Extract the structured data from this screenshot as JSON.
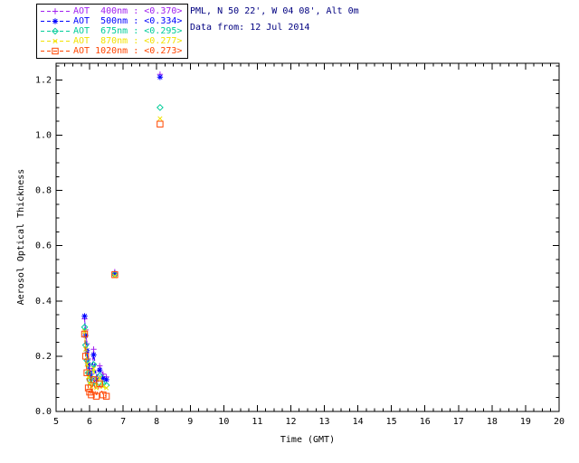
{
  "header": {
    "station_line": "PML, N 50 22', W 04 08', Alt 0m",
    "date_line": "Data from: 12 Jul 2014",
    "text_color": "#000080"
  },
  "legend": {
    "entries": [
      {
        "label": "AOT  400nm : <0.370>",
        "color": "#a020f0",
        "marker": "plus"
      },
      {
        "label": "AOT  500nm : <0.334>",
        "color": "#0000ff",
        "marker": "asterisk"
      },
      {
        "label": "AOT  675nm : <0.295>",
        "color": "#00cc99",
        "marker": "diamond"
      },
      {
        "label": "AOT  870nm : <0.277>",
        "color": "#f2e200",
        "marker": "cross"
      },
      {
        "label": "AOT 1020nm : <0.273>",
        "color": "#ff4500",
        "marker": "square"
      }
    ]
  },
  "chart_data": {
    "type": "scatter",
    "title": "",
    "xlabel": "Time (GMT)",
    "ylabel": "Aerosol Optical Thickness",
    "xlim": [
      5,
      20
    ],
    "ylim": [
      0,
      1.26
    ],
    "xticks": [
      5,
      6,
      7,
      8,
      9,
      10,
      11,
      12,
      13,
      14,
      15,
      16,
      17,
      18,
      19,
      20
    ],
    "yticks": [
      0.0,
      0.2,
      0.4,
      0.6,
      0.8,
      1.0,
      1.2
    ],
    "x_minor_step": 0.25,
    "y_minor_step": 0.05,
    "grid": false,
    "legend_position": "top-left-outside",
    "axis_color": "#000000",
    "line_style": "dashed",
    "x": [
      5.85,
      5.88,
      5.92,
      5.96,
      6.0,
      6.05,
      6.12,
      6.2,
      6.3,
      6.4,
      6.5,
      6.75,
      8.1
    ],
    "connected_point_range": [
      0,
      10
    ],
    "series": [
      {
        "name": "AOT 400nm",
        "mean_label": "<0.370>",
        "color": "#a020f0",
        "marker": "plus",
        "y": [
          0.335,
          0.295,
          0.245,
          0.19,
          0.155,
          0.135,
          0.225,
          0.125,
          0.165,
          0.135,
          0.125,
          0.505,
          1.22
        ]
      },
      {
        "name": "AOT 500nm",
        "mean_label": "<0.334>",
        "color": "#0000ff",
        "marker": "asterisk",
        "y": [
          0.345,
          0.275,
          0.22,
          0.17,
          0.14,
          0.12,
          0.205,
          0.115,
          0.15,
          0.12,
          0.115,
          0.5,
          1.21
        ]
      },
      {
        "name": "AOT 675nm",
        "mean_label": "<0.295>",
        "color": "#00cc99",
        "marker": "diamond",
        "y": [
          0.305,
          0.24,
          0.185,
          0.14,
          0.115,
          0.1,
          0.17,
          0.095,
          0.13,
          0.1,
          0.095,
          0.495,
          1.1
        ]
      },
      {
        "name": "AOT 870nm",
        "mean_label": "<0.277>",
        "color": "#f2e200",
        "marker": "cross",
        "y": [
          0.29,
          0.225,
          0.17,
          0.125,
          0.1,
          0.09,
          0.155,
          0.085,
          0.12,
          0.09,
          0.085,
          0.49,
          1.06
        ]
      },
      {
        "name": "AOT 1020nm",
        "mean_label": "<0.273>",
        "color": "#ff4500",
        "marker": "square",
        "y": [
          0.28,
          0.2,
          0.14,
          0.085,
          0.07,
          0.06,
          0.115,
          0.055,
          0.1,
          0.06,
          0.055,
          0.495,
          1.04
        ]
      }
    ]
  }
}
